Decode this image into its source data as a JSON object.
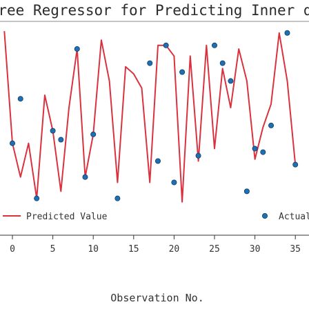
{
  "chart_data": {
    "type": "line",
    "title": "Decision Tree Regressor for Predicting Inner diameter",
    "xlabel": "Observation No.",
    "ylabel": "",
    "x_ticks": [
      0,
      5,
      10,
      15,
      20,
      25,
      30,
      35
    ],
    "tick_labels": [
      "0",
      "5",
      "10",
      "15",
      "20",
      "25",
      "30",
      "35"
    ],
    "xlim": [
      0,
      35
    ],
    "ylim": [
      0,
      1
    ],
    "grid": false,
    "legend": {
      "placement": "bottom",
      "items": [
        {
          "label": "Predicted Value",
          "marker": "line",
          "color": "#d9323e"
        },
        {
          "label": "Actual",
          "marker": "dot",
          "color": "#1f6fb3"
        }
      ]
    },
    "colors": {
      "predicted": "#d9323e",
      "actual": "#1f6fb3",
      "axis": "#333333"
    },
    "series": [
      {
        "name": "Predicted Value",
        "style": "line",
        "x": [
          -1,
          0,
          1,
          2,
          3,
          4,
          5,
          6,
          7,
          8,
          9,
          10,
          11,
          12,
          13,
          14,
          15,
          16,
          17,
          18,
          19,
          20,
          21,
          22,
          23,
          24,
          25,
          26,
          27,
          28,
          29,
          30,
          31,
          32,
          33,
          34,
          35
        ],
        "y": [
          0.98,
          0.35,
          0.16,
          0.35,
          0.04,
          0.62,
          0.42,
          0.08,
          0.55,
          0.88,
          0.16,
          0.4,
          0.93,
          0.7,
          0.13,
          0.78,
          0.74,
          0.66,
          0.13,
          0.9,
          0.9,
          0.84,
          0.02,
          0.84,
          0.25,
          0.9,
          0.32,
          0.77,
          0.55,
          0.88,
          0.7,
          0.26,
          0.44,
          0.57,
          0.97,
          0.7,
          0.23
        ]
      },
      {
        "name": "Actual",
        "style": "scatter",
        "x": [
          0,
          1,
          3,
          5,
          6,
          8,
          9,
          10,
          13,
          17,
          18,
          19,
          20,
          21,
          23,
          25,
          26,
          27,
          29,
          30,
          31,
          32,
          34,
          35
        ],
        "y": [
          0.35,
          0.6,
          0.04,
          0.42,
          0.37,
          0.88,
          0.16,
          0.4,
          0.04,
          0.8,
          0.25,
          0.9,
          0.13,
          0.75,
          0.28,
          0.9,
          0.8,
          0.7,
          0.08,
          0.32,
          0.3,
          0.45,
          0.97,
          0.23
        ]
      }
    ]
  }
}
